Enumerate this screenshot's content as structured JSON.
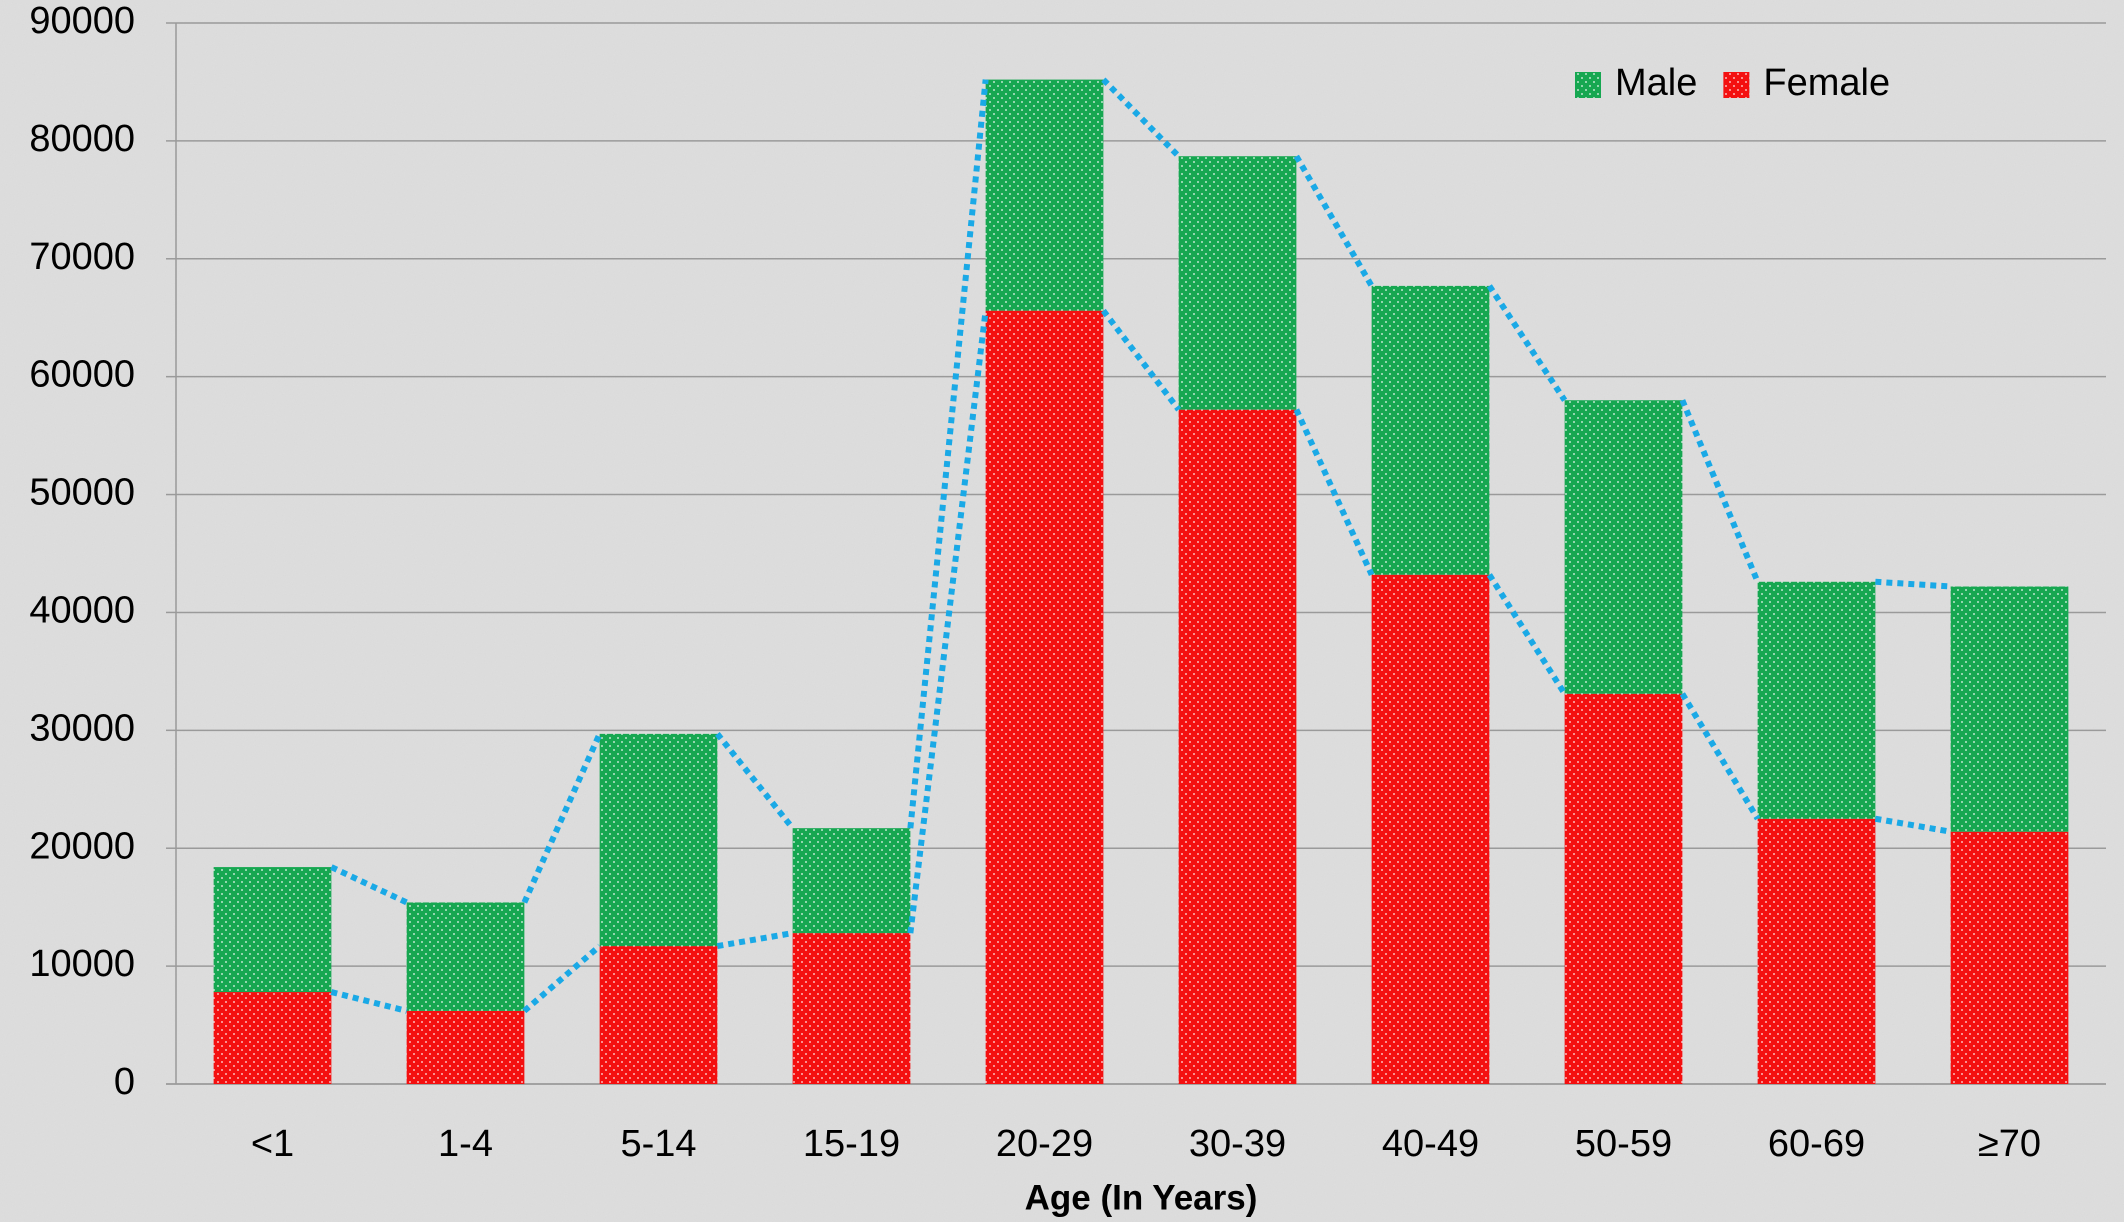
{
  "chart_data": {
    "type": "bar",
    "stacked": true,
    "x_label": "Age (In Years)",
    "categories": [
      "<1",
      "1-4",
      "5-14",
      "15-19",
      "20-29",
      "30-39",
      "40-49",
      "50-59",
      "60-69",
      "≥70"
    ],
    "series": [
      {
        "name": "Male",
        "color": "#16a751",
        "values": [
          10600,
          9200,
          18000,
          8900,
          19600,
          21500,
          24500,
          24900,
          20100,
          20800
        ]
      },
      {
        "name": "Female",
        "color": "#f41010",
        "values": [
          7800,
          6200,
          11700,
          12800,
          65600,
          57200,
          43200,
          33100,
          22500,
          21400
        ]
      }
    ],
    "ylim": [
      0,
      90000
    ],
    "yticks": [
      0,
      10000,
      20000,
      30000,
      40000,
      50000,
      60000,
      70000,
      80000,
      90000
    ],
    "grid": true,
    "legend": "top-right",
    "series_lines_color": "#1aa9e6"
  }
}
